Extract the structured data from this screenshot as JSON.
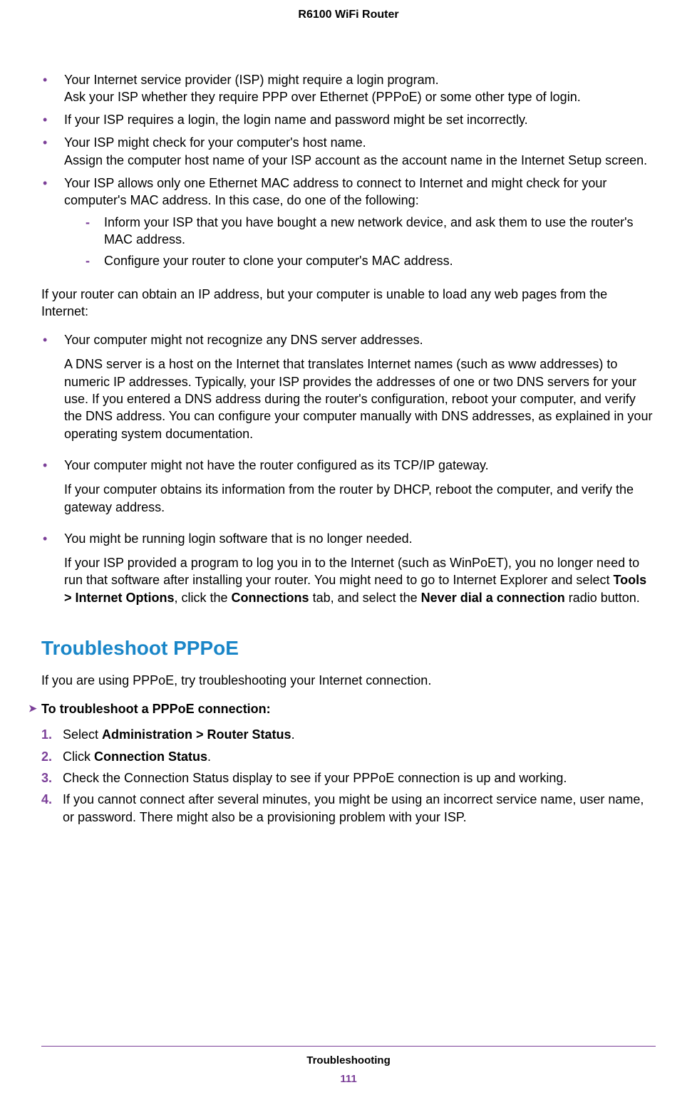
{
  "header": {
    "title": "R6100 WiFi Router"
  },
  "content": {
    "bullets1": [
      {
        "line1": "Your Internet service provider (ISP) might require a login program.",
        "line2": "Ask your ISP whether they require PPP over Ethernet (PPPoE) or some other type of login."
      },
      {
        "line1": "If your ISP requires a login, the login name and password might be set incorrectly."
      },
      {
        "line1": "Your ISP might check for your computer's host name.",
        "line2": "Assign the computer host name of your ISP account as the account name in the Internet Setup screen."
      },
      {
        "line1": "Your ISP allows only one Ethernet MAC address to connect to Internet and might check for your computer's MAC address. In this case, do one of the following:",
        "sub": [
          "Inform your ISP that you have bought a new network device, and ask them to use the router's MAC address.",
          "Configure your router to clone your computer's MAC address."
        ]
      }
    ],
    "para1": "If your router can obtain an IP address, but your computer is unable to load any web pages from the Internet:",
    "bullets2": [
      {
        "main": "Your computer might not recognize any DNS server addresses.",
        "detail": "A DNS server is a host on the Internet that translates Internet names (such as www addresses) to numeric IP addresses. Typically, your ISP provides the addresses of one or two DNS servers for your use. If you entered a DNS address during the router's configuration, reboot your computer, and verify the DNS address. You can configure your computer manually with DNS addresses, as explained in your operating system documentation."
      },
      {
        "main": "Your computer might not have the router configured as its TCP/IP gateway.",
        "detail": "If your computer obtains its information from the router by DHCP, reboot the computer, and verify the gateway address."
      },
      {
        "main": "You might be running login software that is no longer needed.",
        "detail_pre": "If your ISP provided a program to log you in to the Internet (such as WinPoET), you no longer need to run that software after installing your router. You might need to go to Internet Explorer and select ",
        "b1": "Tools > Internet Options",
        "mid1": ", click the ",
        "b2": "Connections",
        "mid2": " tab, and select the ",
        "b3": "Never dial a connection",
        "tail": " radio button."
      }
    ],
    "h2": "Troubleshoot PPPoE",
    "para2": "If you are using PPPoE, try troubleshooting your Internet connection.",
    "arrow_label": "To troubleshoot a PPPoE connection:",
    "steps": {
      "s1_pre": "Select ",
      "s1_b": "Administration > Router Status",
      "s1_post": ".",
      "s2_pre": "Click ",
      "s2_b": "Connection Status",
      "s2_post": ".",
      "s3": "Check the Connection Status display to see if your PPPoE connection is up and working.",
      "s4": "If you cannot connect after several minutes, you might be using an incorrect service name, user name, or password. There might also be a provisioning problem with your ISP."
    }
  },
  "footer": {
    "section": "Troubleshooting",
    "page": "111"
  }
}
